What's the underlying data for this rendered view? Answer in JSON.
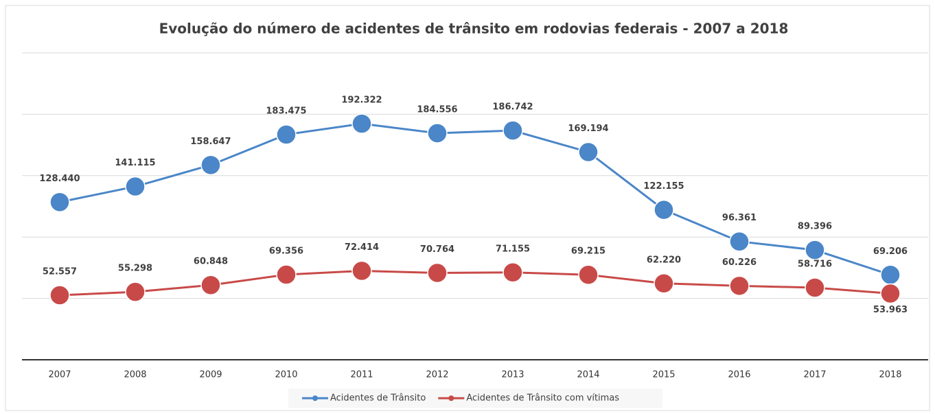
{
  "chart_data": {
    "type": "line",
    "title": "Evolução do número de acidentes de trânsito em rodovias federais - 2007 a 2018",
    "categories": [
      "2007",
      "2008",
      "2009",
      "2010",
      "2011",
      "2012",
      "2013",
      "2014",
      "2015",
      "2016",
      "2017",
      "2018"
    ],
    "series": [
      {
        "name": "Acidentes de Trânsito",
        "color": "#4a86c8",
        "values": [
          128440,
          141115,
          158647,
          183475,
          192322,
          184556,
          186742,
          169194,
          122155,
          96361,
          89396,
          69206
        ],
        "value_labels": [
          "128.440",
          "141.115",
          "158.647",
          "183.475",
          "192.322",
          "184.556",
          "186.742",
          "169.194",
          "122.155",
          "96.361",
          "89.396",
          "69.206"
        ]
      },
      {
        "name": "Acidentes de Trânsito com vítimas",
        "color": "#c84a48",
        "values": [
          52557,
          55298,
          60848,
          69356,
          72414,
          70764,
          71155,
          69215,
          62220,
          60226,
          58716,
          53963
        ],
        "value_labels": [
          "52.557",
          "55.298",
          "60.848",
          "69.356",
          "72.414",
          "70.764",
          "71.155",
          "69.215",
          "62.220",
          "60.226",
          "58.716",
          "53.963"
        ]
      }
    ],
    "ylim": [
      0,
      250000
    ],
    "yticks": [
      0,
      50000,
      100000,
      150000,
      200000,
      250000
    ],
    "grid": true,
    "legend": "bottom"
  }
}
